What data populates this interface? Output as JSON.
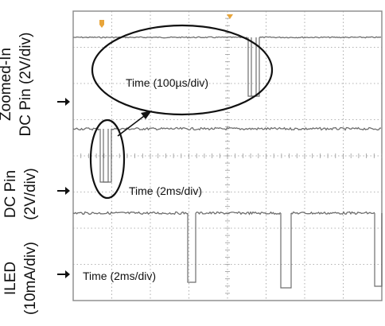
{
  "chart_data": {
    "type": "line",
    "title": "",
    "grid": true,
    "colors": {
      "background": "#ffffff",
      "grid": "#9a9a9a",
      "trace": "#6e6e6e",
      "annotation": "#111111",
      "marker": "#e8a53a"
    },
    "channels": [
      {
        "label_lines": [
          "Zoomed-In",
          "DC Pin (2V/div)"
        ],
        "time_label": "Time (100µs/div)",
        "unit": "2V/div"
      },
      {
        "label_lines": [
          "DC Pin",
          "(2V/div)"
        ],
        "time_label": "Time (2ms/div)",
        "unit": "2V/div"
      },
      {
        "label_lines": [
          "ILED",
          "(10mA/div)"
        ],
        "time_label": "Time (2ms/div)",
        "unit": "10mA/div"
      }
    ]
  }
}
